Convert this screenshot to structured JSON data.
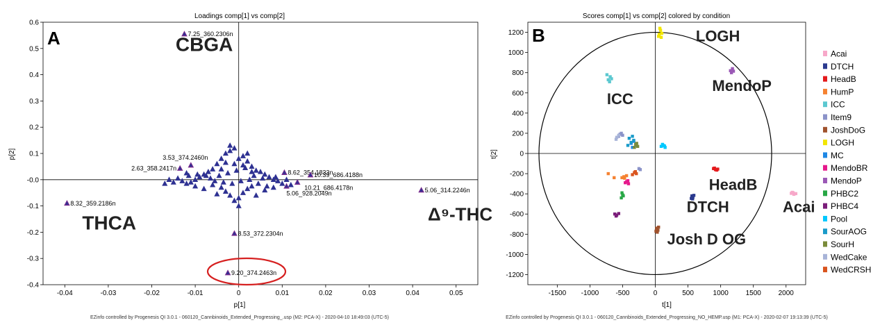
{
  "chart_data": [
    {
      "type": "scatter",
      "panel": "A",
      "title": "Loadings comp[1] vs comp[2]",
      "xlabel": "p[1]",
      "ylabel": "p[2]",
      "xlim": [
        -0.045,
        0.055
      ],
      "ylim": [
        -0.4,
        0.6
      ],
      "x_ticks": [
        -0.04,
        -0.03,
        -0.02,
        -0.01,
        0,
        0.01,
        0.02,
        0.03,
        0.04,
        0.05
      ],
      "x_tick_labels": [
        "-0.04",
        "-0.03",
        "-0.02",
        "-0.01",
        "0",
        "0.01",
        "0.02",
        "0.03",
        "0.04",
        "0.05"
      ],
      "y_ticks": [
        -0.4,
        -0.3,
        -0.2,
        -0.1,
        0,
        0.1,
        0.2,
        0.3,
        0.4,
        0.5,
        0.6
      ],
      "y_tick_labels": [
        "-0.4",
        "-0.3",
        "-0.2",
        "-0.1",
        "-0.0",
        "0.1",
        "0.2",
        "0.3",
        "0.4",
        "0.5",
        "0.6"
      ],
      "grid": false,
      "marker_color": "#2e3192",
      "highlight_color": "#7b2d8e",
      "labeled_points": [
        {
          "label": "7.25_360.2306n",
          "x": -0.0125,
          "y": 0.555
        },
        {
          "label": "3.53_374.2460n",
          "x": -0.011,
          "y": 0.055
        },
        {
          "label": "2.63_358.2417n",
          "x": -0.0135,
          "y": 0.043
        },
        {
          "label": "8.62_354.1833n",
          "x": 0.0105,
          "y": 0.027
        },
        {
          "label": "10.39_686.4188n",
          "x": 0.0165,
          "y": 0.018
        },
        {
          "label": "10.21_686.4178n",
          "x": 0.0135,
          "y": -0.01
        },
        {
          "label": "5.06_928.2049n",
          "x": 0.011,
          "y": -0.025
        },
        {
          "label": "5.06_314.2246n",
          "x": 0.042,
          "y": -0.04
        },
        {
          "label": "8.32_359.2186n",
          "x": -0.0395,
          "y": -0.09
        },
        {
          "label": "8.53_372.2304n",
          "x": -0.001,
          "y": -0.205
        },
        {
          "label": "9.20_374.2463n",
          "x": -0.0025,
          "y": -0.355
        }
      ],
      "cluster_points": [
        [
          -0.002,
          0.13
        ],
        [
          -0.001,
          0.12
        ],
        [
          -0.003,
          0.1
        ],
        [
          0.001,
          0.09
        ],
        [
          -0.004,
          0.08
        ],
        [
          0.002,
          0.07
        ],
        [
          -0.005,
          0.06
        ],
        [
          0.003,
          0.05
        ],
        [
          -0.006,
          0.04
        ],
        [
          0.004,
          0.035
        ],
        [
          -0.007,
          0.03
        ],
        [
          0.005,
          0.03
        ],
        [
          -0.008,
          0.02
        ],
        [
          0.006,
          0.02
        ],
        [
          -0.009,
          0.01
        ],
        [
          0.007,
          0.01
        ],
        [
          -0.01,
          0.0
        ],
        [
          0.008,
          0.0
        ],
        [
          -0.011,
          -0.01
        ],
        [
          0.009,
          -0.005
        ],
        [
          -0.012,
          -0.015
        ],
        [
          0.01,
          -0.015
        ],
        [
          -0.013,
          -0.005
        ],
        [
          -0.014,
          0.005
        ],
        [
          -0.015,
          -0.01
        ],
        [
          -0.016,
          0.0
        ],
        [
          -0.006,
          -0.02
        ],
        [
          0.003,
          -0.025
        ],
        [
          -0.004,
          -0.03
        ],
        [
          0.002,
          -0.035
        ],
        [
          -0.003,
          -0.045
        ],
        [
          0.001,
          -0.05
        ],
        [
          -0.002,
          -0.06
        ],
        [
          0.0,
          -0.07
        ],
        [
          -0.001,
          -0.08
        ],
        [
          0.0,
          -0.1
        ],
        [
          -0.005,
          -0.055
        ],
        [
          0.004,
          -0.06
        ],
        [
          -0.008,
          -0.035
        ],
        [
          0.006,
          -0.04
        ],
        [
          -0.01,
          -0.025
        ],
        [
          0.008,
          -0.03
        ],
        [
          -0.0065,
          0.005
        ],
        [
          -0.0045,
          0.015
        ],
        [
          -0.0025,
          0.025
        ],
        [
          -0.0005,
          0.035
        ],
        [
          0.0015,
          0.045
        ],
        [
          0.0035,
          0.015
        ],
        [
          0.0055,
          0.005
        ],
        [
          -0.0035,
          -0.01
        ],
        [
          -0.0015,
          -0.015
        ],
        [
          0.0005,
          -0.005
        ],
        [
          0.0025,
          0.0
        ],
        [
          0.0045,
          -0.015
        ],
        [
          -0.0055,
          -0.005
        ],
        [
          -0.0075,
          0.015
        ],
        [
          -0.0095,
          0.02
        ],
        [
          -0.0115,
          0.015
        ],
        [
          0.0065,
          -0.025
        ],
        [
          0.0085,
          0.01
        ],
        [
          -0.001,
          0.06
        ],
        [
          0.0,
          0.08
        ],
        [
          -0.002,
          0.11
        ],
        [
          -0.003,
          0.065
        ],
        [
          0.002,
          0.1
        ],
        [
          0.001,
          0.055
        ],
        [
          -0.004,
          0.04
        ],
        [
          0.003,
          0.03
        ],
        [
          -0.012,
          0.025
        ],
        [
          0.011,
          0.0
        ],
        [
          0.012,
          -0.02
        ],
        [
          -0.017,
          -0.015
        ]
      ],
      "annotations": [
        {
          "text": "CBGA",
          "x": -0.0145,
          "y": 0.49
        },
        {
          "text": "THCA",
          "x": -0.036,
          "y": -0.19
        },
        {
          "text": "Δ⁹-THC",
          "x": 0.0435,
          "y": -0.155
        }
      ],
      "footer": "EZinfo controlled by Progenesis QI 3.0.1 - 060120_Cannbinoids_Extended_Progressing_.usp (M2: PCA-X) - 2020-04-10 18:49:03 (UTC-5)"
    },
    {
      "type": "scatter",
      "panel": "B",
      "title": "Scores comp[1] vs comp[2] colored by condition",
      "xlabel": "t[1]",
      "ylabel": "t[2]",
      "xlim": [
        -1950,
        2300
      ],
      "ylim": [
        -1300,
        1300
      ],
      "x_ticks": [
        -1500,
        -1000,
        -500,
        0,
        500,
        1000,
        1500,
        2000
      ],
      "x_tick_labels": [
        "-1500",
        "-1000",
        "-500",
        "0",
        "500",
        "1000",
        "1500",
        "2000"
      ],
      "y_ticks": [
        -1200,
        -1000,
        -800,
        -600,
        -400,
        -200,
        0,
        200,
        400,
        600,
        800,
        1000,
        1200
      ],
      "y_tick_labels": [
        "-1200",
        "-1000",
        "-800",
        "-600",
        "-400",
        "-200",
        "0",
        "200",
        "400",
        "600",
        "800",
        "1000",
        "1200"
      ],
      "grid": false,
      "ellipse": {
        "rx": 1780,
        "ry": 1200
      },
      "legend_position": "right",
      "series": [
        {
          "name": "Acai",
          "color": "#f7a8c9",
          "points": [
            [
              2080,
              -395
            ],
            [
              2110,
              -390
            ],
            [
              2150,
              -398
            ],
            [
              2120,
              -405
            ],
            [
              2095,
              -385
            ]
          ]
        },
        {
          "name": "DTCH",
          "color": "#2b3a8f",
          "points": [
            [
              560,
              -420
            ],
            [
              575,
              -435
            ],
            [
              550,
              -445
            ],
            [
              590,
              -415
            ],
            [
              570,
              -450
            ]
          ]
        },
        {
          "name": "HeadB",
          "color": "#e41a1c",
          "points": [
            [
              890,
              -150
            ],
            [
              920,
              -160
            ],
            [
              955,
              -155
            ],
            [
              905,
              -145
            ],
            [
              940,
              -165
            ]
          ]
        },
        {
          "name": "HumP",
          "color": "#f58231",
          "points": [
            [
              -480,
              -230
            ],
            [
              -440,
              -220
            ],
            [
              -510,
              -240
            ],
            [
              -470,
              -245
            ],
            [
              -720,
              -200
            ],
            [
              -630,
              -240
            ]
          ]
        },
        {
          "name": "ICC",
          "color": "#5bc8d0",
          "points": [
            [
              -720,
              730
            ],
            [
              -690,
              760
            ],
            [
              -740,
              780
            ],
            [
              -700,
              710
            ],
            [
              -670,
              740
            ]
          ]
        },
        {
          "name": "Item9",
          "color": "#8b93c9",
          "points": [
            [
              -540,
              190
            ],
            [
              -500,
              180
            ],
            [
              -560,
              170
            ],
            [
              -520,
              200
            ],
            [
              -250,
              -150
            ],
            [
              -230,
              -160
            ]
          ]
        },
        {
          "name": "JoshDoG",
          "color": "#a0522d",
          "points": [
            [
              20,
              -740
            ],
            [
              40,
              -760
            ],
            [
              10,
              -770
            ],
            [
              50,
              -730
            ],
            [
              30,
              -780
            ]
          ]
        },
        {
          "name": "LOGH",
          "color": "#f2e600",
          "points": [
            [
              60,
              1180
            ],
            [
              80,
              1220
            ],
            [
              50,
              1160
            ],
            [
              100,
              1190
            ],
            [
              70,
              1240
            ],
            [
              90,
              1150
            ]
          ]
        },
        {
          "name": "MC",
          "color": "#1e88e5",
          "points": [
            [
              -370,
              100
            ],
            [
              -330,
              120
            ],
            [
              -300,
              80
            ],
            [
              -350,
              60
            ]
          ]
        },
        {
          "name": "MendoBR",
          "color": "#e6198c",
          "points": [
            [
              -440,
              -280
            ],
            [
              -410,
              -300
            ],
            [
              -460,
              -290
            ],
            [
              -420,
              -270
            ]
          ]
        },
        {
          "name": "MendoP",
          "color": "#9b59b6",
          "points": [
            [
              1150,
              820
            ],
            [
              1180,
              840
            ],
            [
              1165,
              800
            ],
            [
              1195,
              815
            ]
          ]
        },
        {
          "name": "PHBC2",
          "color": "#27a745",
          "points": [
            [
              -510,
              -390
            ],
            [
              -490,
              -420
            ],
            [
              -520,
              -440
            ],
            [
              -500,
              -410
            ]
          ]
        },
        {
          "name": "PHBC4",
          "color": "#7b1e7a",
          "points": [
            [
              -620,
              -600
            ],
            [
              -590,
              -610
            ],
            [
              -560,
              -595
            ],
            [
              -600,
              -620
            ]
          ]
        },
        {
          "name": "Pool",
          "color": "#00c8ff",
          "points": [
            [
              90,
              70
            ],
            [
              120,
              80
            ],
            [
              150,
              60
            ],
            [
              110,
              90
            ],
            [
              140,
              75
            ]
          ]
        },
        {
          "name": "SourAOG",
          "color": "#1a9bc9",
          "points": [
            [
              -400,
              150
            ],
            [
              -370,
              110
            ],
            [
              -420,
              80
            ],
            [
              -350,
              170
            ],
            [
              -330,
              130
            ]
          ]
        },
        {
          "name": "SourH",
          "color": "#7a8b3a",
          "points": [
            [
              -300,
              90
            ],
            [
              -270,
              70
            ],
            [
              -320,
              60
            ],
            [
              -285,
              100
            ]
          ]
        },
        {
          "name": "WedCake",
          "color": "#a8b4d8",
          "points": [
            [
              -590,
              160
            ],
            [
              -560,
              180
            ],
            [
              -600,
              140
            ]
          ]
        },
        {
          "name": "WedCRSH",
          "color": "#d9541e",
          "points": [
            [
              -320,
              -190
            ],
            [
              -290,
              -200
            ],
            [
              -350,
              -210
            ],
            [
              -305,
              -180
            ]
          ]
        }
      ],
      "annotations": [
        {
          "text": "LOGH",
          "x": 620,
          "y": 1110
        },
        {
          "text": "MendoP",
          "x": 870,
          "y": 620
        },
        {
          "text": "ICC",
          "x": -740,
          "y": 490
        },
        {
          "text": "HeadB",
          "x": 820,
          "y": -360
        },
        {
          "text": "DTCH",
          "x": 480,
          "y": -580
        },
        {
          "text": "Acai",
          "x": 1950,
          "y": -580
        },
        {
          "text": "Josh D OG",
          "x": 180,
          "y": -900
        }
      ],
      "footer": "EZinfo controlled by Progenesis QI 3.0.1 - 060120_Cannbinoids_Extended_Progressing_NO_HEMP.usp (M1: PCA-X) - 2020-02-07 19:13:39 (UTC-5)"
    }
  ]
}
